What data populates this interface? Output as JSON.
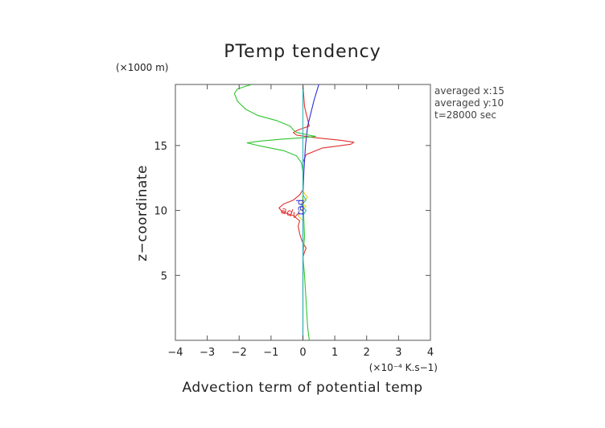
{
  "chart_data": {
    "type": "line",
    "title": "PTemp tendency",
    "xlabel": "Advection term of potential temp",
    "ylabel": "z−coordinate",
    "x_unit": "(×10⁻⁴ K.s−1)",
    "y_unit": "(×1000 m)",
    "xlim": [
      -4,
      4
    ],
    "ylim": [
      0,
      19.7
    ],
    "x_ticks": [
      -4,
      -3,
      -2,
      -1,
      0,
      1,
      2,
      3,
      4
    ],
    "x_tick_labels": [
      "−4",
      "−3",
      "−2",
      "−1",
      "0",
      "1",
      "2",
      "3",
      "4"
    ],
    "y_ticks": [
      5,
      10,
      15
    ],
    "y_tick_labels": [
      "5",
      "10",
      "15"
    ],
    "grid": false,
    "info_text": [
      "averaged  x:15",
      "averaged  y:10",
      "t=28000 sec"
    ],
    "series": [
      {
        "name": "adv",
        "color": "#e03030",
        "points": [
          [
            0,
            0
          ],
          [
            0,
            6.4
          ],
          [
            0.05,
            6.8
          ],
          [
            0.1,
            7.1
          ],
          [
            0.05,
            7.3
          ],
          [
            0,
            7.5
          ],
          [
            -0.05,
            7.8
          ],
          [
            -0.1,
            8.2
          ],
          [
            -0.15,
            8.8
          ],
          [
            -0.1,
            9.2
          ],
          [
            -0.3,
            9.6
          ],
          [
            -0.65,
            9.9
          ],
          [
            -0.75,
            10.2
          ],
          [
            -0.6,
            10.5
          ],
          [
            -0.3,
            10.8
          ],
          [
            -0.1,
            11.2
          ],
          [
            0,
            11.6
          ],
          [
            0,
            13.7
          ],
          [
            0.1,
            14.3
          ],
          [
            0.6,
            14.8
          ],
          [
            1.5,
            15.1
          ],
          [
            1.6,
            15.25
          ],
          [
            1.2,
            15.4
          ],
          [
            0.4,
            15.6
          ],
          [
            0.1,
            15.7
          ],
          [
            -0.2,
            15.8
          ],
          [
            -0.3,
            16.0
          ],
          [
            -0.15,
            16.2
          ],
          [
            0.2,
            16.5
          ],
          [
            0.15,
            17.0
          ],
          [
            0.05,
            18.0
          ],
          [
            0,
            19.7
          ]
        ]
      },
      {
        "name": "rad",
        "color": "#2c2cd8",
        "points": [
          [
            0,
            0
          ],
          [
            0,
            11
          ],
          [
            0.03,
            13
          ],
          [
            0.08,
            15
          ],
          [
            0.15,
            16.5
          ],
          [
            0.25,
            17.5
          ],
          [
            0.35,
            18.5
          ],
          [
            0.45,
            19.3
          ],
          [
            0.5,
            19.7
          ]
        ]
      },
      {
        "name": "",
        "color": "#2fc52f",
        "points": [
          [
            0.2,
            0
          ],
          [
            0.15,
            1
          ],
          [
            0.1,
            3
          ],
          [
            0.05,
            5
          ],
          [
            0,
            6.5
          ],
          [
            0.05,
            8
          ],
          [
            0,
            11
          ],
          [
            0,
            13
          ],
          [
            -0.05,
            13.7
          ],
          [
            -0.2,
            14.2
          ],
          [
            -0.6,
            14.6
          ],
          [
            -1.4,
            15.0
          ],
          [
            -1.75,
            15.2
          ],
          [
            -1.3,
            15.35
          ],
          [
            -0.6,
            15.5
          ],
          [
            0,
            15.6
          ],
          [
            0.4,
            15.7
          ],
          [
            0.2,
            15.8
          ],
          [
            -0.2,
            16.0
          ],
          [
            -0.3,
            16.2
          ],
          [
            -0.4,
            16.5
          ],
          [
            -0.8,
            16.9
          ],
          [
            -1.4,
            17.3
          ],
          [
            -1.8,
            17.8
          ],
          [
            -2.05,
            18.4
          ],
          [
            -2.15,
            19.0
          ],
          [
            -2.05,
            19.35
          ],
          [
            -1.75,
            19.6
          ],
          [
            -1.6,
            19.7
          ]
        ]
      },
      {
        "name": "",
        "color": "#e8d820",
        "points": [
          [
            0,
            0
          ],
          [
            0,
            9.2
          ],
          [
            -0.15,
            9.6
          ],
          [
            -0.1,
            10
          ],
          [
            0.1,
            10.3
          ],
          [
            -0.05,
            10.6
          ],
          [
            0.15,
            11.0
          ],
          [
            0.05,
            11.3
          ],
          [
            0,
            11.6
          ],
          [
            0,
            19.7
          ]
        ]
      },
      {
        "name": "",
        "color": "#34b8c8",
        "points": [
          [
            0,
            0
          ],
          [
            0,
            9.6
          ],
          [
            0.1,
            10.0
          ],
          [
            -0.05,
            10.4
          ],
          [
            0.1,
            10.8
          ],
          [
            0,
            11.2
          ],
          [
            0,
            19.7
          ]
        ]
      }
    ],
    "curve_labels": [
      {
        "text": "adv",
        "x": -0.45,
        "y": 9.6,
        "color": "#e03030",
        "rotate": 20
      },
      {
        "text": "rad",
        "x": 0.02,
        "y": 10.25,
        "color": "#2c2cd8",
        "rotate": -90
      }
    ]
  }
}
